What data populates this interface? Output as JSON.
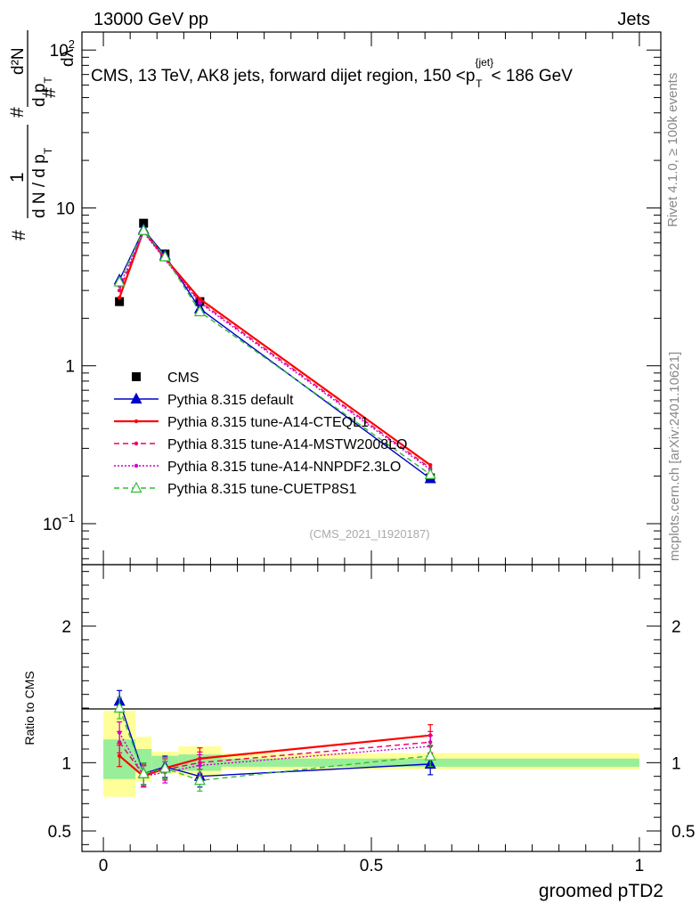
{
  "header": {
    "left": "13000 GeV pp",
    "right": "Jets"
  },
  "title_parts": {
    "main": "CMS, 13 TeV, AK8 jets, forward dijet region, 150 <p",
    "sup": "{jet}",
    "sub": "T",
    "end": "< 186 GeV"
  },
  "side_labels": {
    "rivet": "Rivet 4.1.0, ≥ 100k events",
    "mcplots": "mcplots.cern.ch [arXiv:2401.10621]"
  },
  "analysis_id": "(CMS_2021_I1920187)",
  "ylabel_parts": {
    "hash_left": "#",
    "one": "1",
    "dn_left": "d N / d p",
    "t_left": "T",
    "hash_mid": "#",
    "d2n": "d²N",
    "dp_mid": "d p",
    "t_mid": "T",
    "hash_right": "#",
    "dlambda": "dλ"
  },
  "chart_data": [
    {
      "type": "line",
      "panel": "main",
      "yscale": "log",
      "ylim": [
        0.055,
        130
      ],
      "xlim": [
        -0.04,
        1.04
      ],
      "yticks": [
        {
          "value": 0.1,
          "base": "10",
          "exp": "−1"
        },
        {
          "value": 1,
          "base": "1",
          "exp": ""
        },
        {
          "value": 10,
          "base": "10",
          "exp": ""
        },
        {
          "value": 100,
          "base": "10",
          "exp": "2"
        }
      ],
      "x": [
        0.03,
        0.075,
        0.115,
        0.18,
        0.61
      ],
      "series": [
        {
          "name": "CMS",
          "style": "data",
          "color": "#000000",
          "values": [
            2.55,
            8.0,
            5.1,
            2.55,
            0.195
          ]
        },
        {
          "name": "Pythia 8.315 default",
          "style": "solid-triangle",
          "color": "#0000cc",
          "values": [
            3.5,
            7.3,
            5.0,
            2.3,
            0.193
          ]
        },
        {
          "name": "Pythia 8.315 tune-A14-CTEQL1",
          "style": "solid",
          "color": "#ff0000",
          "values": [
            2.7,
            7.2,
            4.8,
            2.65,
            0.235
          ]
        },
        {
          "name": "Pythia 8.315 tune-A14-MSTW2008LO",
          "style": "dashed",
          "color": "#ee0066",
          "values": [
            3.0,
            7.1,
            4.75,
            2.55,
            0.225
          ]
        },
        {
          "name": "Pythia 8.315 tune-A14-NNPDF2.3LO",
          "style": "dotted",
          "color": "#cc00cc",
          "values": [
            3.2,
            7.0,
            4.7,
            2.5,
            0.22
          ]
        },
        {
          "name": "Pythia 8.315 tune-CUETP8S1",
          "style": "dashed-open-triangle",
          "color": "#33bb33",
          "values": [
            3.4,
            7.2,
            4.9,
            2.2,
            0.205
          ]
        }
      ]
    },
    {
      "type": "line",
      "panel": "ratio",
      "ylabel": "Ratio to CMS",
      "xlabel": "groomed pTD2",
      "ylim": [
        0.35,
        2.45
      ],
      "xlim": [
        -0.04,
        1.04
      ],
      "yticks": [
        {
          "value": 0.5,
          "label": "0.5"
        },
        {
          "value": 1,
          "label": "1"
        },
        {
          "value": 2,
          "label": "2"
        }
      ],
      "xticks": [
        {
          "value": 0,
          "label": "0"
        },
        {
          "value": 0.5,
          "label": "0.5"
        },
        {
          "value": 1,
          "label": "1"
        }
      ],
      "x": [
        0.03,
        0.075,
        0.115,
        0.18,
        0.61
      ],
      "uncertainty_bands": [
        {
          "x0": 0.0,
          "x1": 0.06,
          "stat": [
            0.88,
            1.17
          ],
          "total": [
            0.75,
            1.38
          ]
        },
        {
          "x0": 0.06,
          "x1": 0.09,
          "stat": [
            0.93,
            1.1
          ],
          "total": [
            0.86,
            1.19
          ]
        },
        {
          "x0": 0.09,
          "x1": 0.14,
          "stat": [
            0.95,
            1.05
          ],
          "total": [
            0.92,
            1.08
          ]
        },
        {
          "x0": 0.14,
          "x1": 0.22,
          "stat": [
            0.94,
            1.06
          ],
          "total": [
            0.9,
            1.12
          ]
        },
        {
          "x0": 0.22,
          "x1": 1.0,
          "stat": [
            0.97,
            1.03
          ],
          "total": [
            0.95,
            1.07
          ]
        }
      ],
      "series": [
        {
          "name": "Pythia 8.315 default",
          "style": "solid-triangle",
          "color": "#0000cc",
          "values": [
            1.45,
            0.92,
            0.97,
            0.9,
            0.99
          ]
        },
        {
          "name": "Pythia 8.315 tune-A14-CTEQL1",
          "style": "solid",
          "color": "#ff0000",
          "values": [
            1.05,
            0.9,
            0.96,
            1.03,
            1.2
          ]
        },
        {
          "name": "Pythia 8.315 tune-A14-MSTW2008LO",
          "style": "dashed",
          "color": "#ee0066",
          "values": [
            1.15,
            0.91,
            0.95,
            1.0,
            1.15
          ]
        },
        {
          "name": "Pythia 8.315 tune-A14-NNPDF2.3LO",
          "style": "dotted",
          "color": "#cc00cc",
          "values": [
            1.22,
            0.9,
            0.93,
            0.98,
            1.12
          ]
        },
        {
          "name": "Pythia 8.315 tune-CUETP8S1",
          "style": "dashed-open-triangle",
          "color": "#33bb33",
          "values": [
            1.4,
            0.92,
            0.96,
            0.87,
            1.05
          ]
        }
      ]
    }
  ]
}
